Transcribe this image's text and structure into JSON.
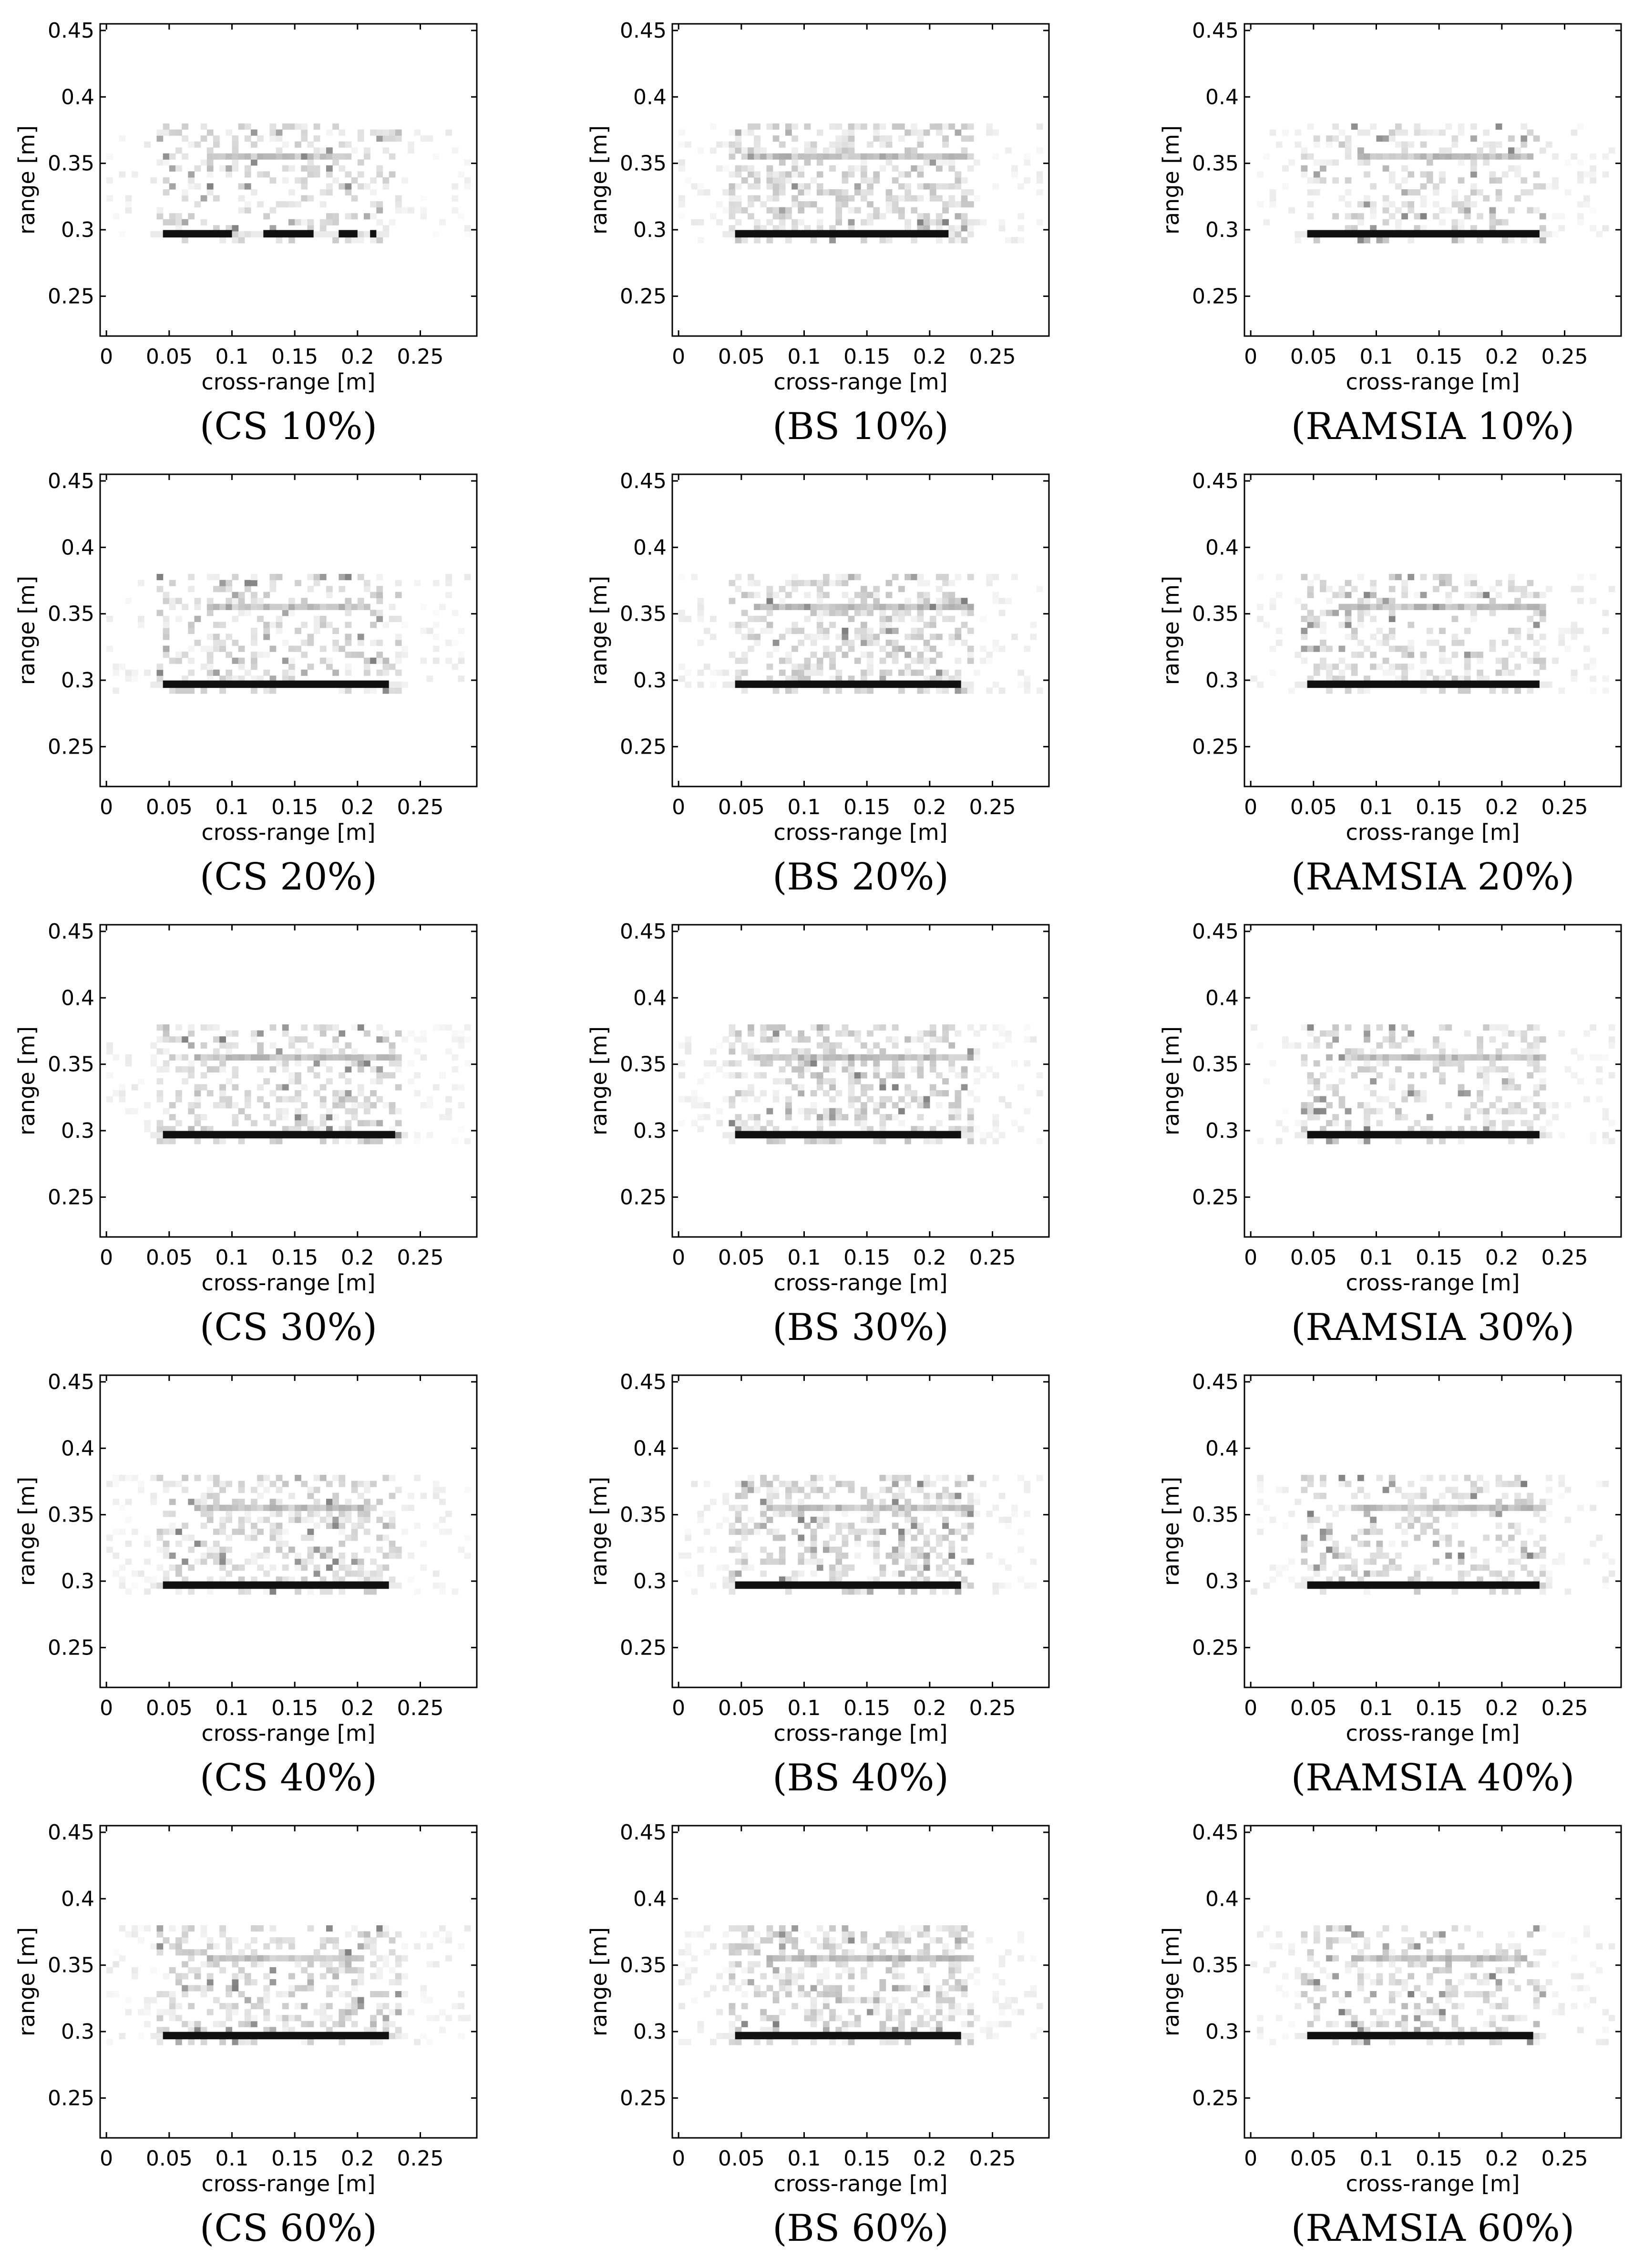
{
  "figure": {
    "xlabel": "cross-range [m]",
    "ylabel": "range [m]",
    "xticks": [
      "0",
      "0.05",
      "0.1",
      "0.15",
      "0.2",
      "0.25"
    ],
    "yticks": [
      "0.25",
      "0.3",
      "0.35",
      "0.4",
      "0.45"
    ],
    "xlim": [
      -0.005,
      0.295
    ],
    "ylim": [
      0.22,
      0.455
    ],
    "colormap": "grayscale (white = low, black = high)"
  },
  "chart_data": [
    {
      "type": "heatmap",
      "method": "CS",
      "percent": "10%",
      "caption": "(CS 10%)",
      "xlabel": "cross-range [m]",
      "ylabel": "range [m]",
      "xlim": [
        -0.005,
        0.295
      ],
      "ylim": [
        0.22,
        0.455
      ],
      "x_extent": [
        0.0,
        0.29
      ],
      "y_extent": [
        0.29,
        0.38
      ],
      "bright_lines_range_m": [
        0.297,
        0.355
      ],
      "strong_line": {
        "range_m": 0.297,
        "cross_range_m": [
          0.045,
          0.215
        ],
        "segments": [
          [
            0.045,
            0.1
          ],
          [
            0.125,
            0.165
          ],
          [
            0.185,
            0.2
          ],
          [
            0.21,
            0.215
          ]
        ]
      },
      "secondary_line": {
        "range_m": 0.355,
        "cross_range_m": [
          0.085,
          0.185
        ]
      },
      "speckle_level": 0.25,
      "band_intensity": 0.45
    },
    {
      "type": "heatmap",
      "method": "BS",
      "percent": "10%",
      "caption": "(BS 10%)",
      "xlabel": "cross-range [m]",
      "ylabel": "range [m]",
      "xlim": [
        -0.005,
        0.295
      ],
      "ylim": [
        0.22,
        0.455
      ],
      "x_extent": [
        0.0,
        0.29
      ],
      "y_extent": [
        0.29,
        0.38
      ],
      "bright_lines_range_m": [
        0.297,
        0.355
      ],
      "strong_line": {
        "range_m": 0.297,
        "cross_range_m": [
          0.045,
          0.215
        ],
        "segments": [
          [
            0.045,
            0.215
          ]
        ]
      },
      "secondary_line": {
        "range_m": 0.355,
        "cross_range_m": [
          0.065,
          0.225
        ]
      },
      "speckle_level": 0.4,
      "band_intensity": 0.55
    },
    {
      "type": "heatmap",
      "method": "RAMSIA",
      "percent": "10%",
      "caption": "(RAMSIA 10%)",
      "xlabel": "cross-range [m]",
      "ylabel": "range [m]",
      "xlim": [
        -0.005,
        0.295
      ],
      "ylim": [
        0.22,
        0.455
      ],
      "x_extent": [
        0.0,
        0.29
      ],
      "y_extent": [
        0.29,
        0.38
      ],
      "bright_lines_range_m": [
        0.297,
        0.355
      ],
      "strong_line": {
        "range_m": 0.297,
        "cross_range_m": [
          0.045,
          0.23
        ],
        "segments": [
          [
            0.045,
            0.23
          ]
        ]
      },
      "secondary_line": {
        "range_m": 0.355,
        "cross_range_m": [
          0.095,
          0.215
        ]
      },
      "speckle_level": 0.3,
      "band_intensity": 0.5
    },
    {
      "type": "heatmap",
      "method": "CS",
      "percent": "20%",
      "caption": "(CS 20%)",
      "xlabel": "cross-range [m]",
      "ylabel": "range [m]",
      "xlim": [
        -0.005,
        0.295
      ],
      "ylim": [
        0.22,
        0.455
      ],
      "x_extent": [
        0.0,
        0.29
      ],
      "y_extent": [
        0.29,
        0.38
      ],
      "bright_lines_range_m": [
        0.297,
        0.355
      ],
      "strong_line": {
        "range_m": 0.297,
        "cross_range_m": [
          0.045,
          0.225
        ],
        "segments": [
          [
            0.045,
            0.225
          ]
        ]
      },
      "secondary_line": {
        "range_m": 0.355,
        "cross_range_m": [
          0.085,
          0.2
        ]
      },
      "speckle_level": 0.3,
      "band_intensity": 0.5
    },
    {
      "type": "heatmap",
      "method": "BS",
      "percent": "20%",
      "caption": "(BS 20%)",
      "xlabel": "cross-range [m]",
      "ylabel": "range [m]",
      "xlim": [
        -0.005,
        0.295
      ],
      "ylim": [
        0.22,
        0.455
      ],
      "x_extent": [
        0.0,
        0.29
      ],
      "y_extent": [
        0.29,
        0.38
      ],
      "bright_lines_range_m": [
        0.297,
        0.355
      ],
      "strong_line": {
        "range_m": 0.297,
        "cross_range_m": [
          0.045,
          0.225
        ],
        "segments": [
          [
            0.045,
            0.225
          ]
        ]
      },
      "secondary_line": {
        "range_m": 0.355,
        "cross_range_m": [
          0.065,
          0.225
        ]
      },
      "speckle_level": 0.4,
      "band_intensity": 0.55
    },
    {
      "type": "heatmap",
      "method": "RAMSIA",
      "percent": "20%",
      "caption": "(RAMSIA 20%)",
      "xlabel": "cross-range [m]",
      "ylabel": "range [m]",
      "xlim": [
        -0.005,
        0.295
      ],
      "ylim": [
        0.22,
        0.455
      ],
      "x_extent": [
        0.0,
        0.29
      ],
      "y_extent": [
        0.29,
        0.38
      ],
      "bright_lines_range_m": [
        0.297,
        0.355
      ],
      "strong_line": {
        "range_m": 0.297,
        "cross_range_m": [
          0.045,
          0.23
        ],
        "segments": [
          [
            0.045,
            0.23
          ]
        ]
      },
      "secondary_line": {
        "range_m": 0.355,
        "cross_range_m": [
          0.075,
          0.225
        ]
      },
      "speckle_level": 0.3,
      "band_intensity": 0.5
    },
    {
      "type": "heatmap",
      "method": "CS",
      "percent": "30%",
      "caption": "(CS 30%)",
      "xlabel": "cross-range [m]",
      "ylabel": "range [m]",
      "xlim": [
        -0.005,
        0.295
      ],
      "ylim": [
        0.22,
        0.455
      ],
      "x_extent": [
        0.0,
        0.29
      ],
      "y_extent": [
        0.29,
        0.38
      ],
      "bright_lines_range_m": [
        0.297,
        0.355
      ],
      "strong_line": {
        "range_m": 0.297,
        "cross_range_m": [
          0.045,
          0.23
        ],
        "segments": [
          [
            0.045,
            0.23
          ]
        ]
      },
      "secondary_line": {
        "range_m": 0.355,
        "cross_range_m": [
          0.075,
          0.225
        ]
      },
      "speckle_level": 0.35,
      "band_intensity": 0.5
    },
    {
      "type": "heatmap",
      "method": "BS",
      "percent": "30%",
      "caption": "(BS 30%)",
      "xlabel": "cross-range [m]",
      "ylabel": "range [m]",
      "xlim": [
        -0.005,
        0.295
      ],
      "ylim": [
        0.22,
        0.455
      ],
      "x_extent": [
        0.0,
        0.29
      ],
      "y_extent": [
        0.29,
        0.38
      ],
      "bright_lines_range_m": [
        0.297,
        0.355
      ],
      "strong_line": {
        "range_m": 0.297,
        "cross_range_m": [
          0.045,
          0.225
        ],
        "segments": [
          [
            0.045,
            0.225
          ]
        ]
      },
      "secondary_line": {
        "range_m": 0.355,
        "cross_range_m": [
          0.065,
          0.225
        ]
      },
      "speckle_level": 0.4,
      "band_intensity": 0.55
    },
    {
      "type": "heatmap",
      "method": "RAMSIA",
      "percent": "30%",
      "caption": "(RAMSIA 30%)",
      "xlabel": "cross-range [m]",
      "ylabel": "range [m]",
      "xlim": [
        -0.005,
        0.295
      ],
      "ylim": [
        0.22,
        0.455
      ],
      "x_extent": [
        0.0,
        0.29
      ],
      "y_extent": [
        0.29,
        0.38
      ],
      "bright_lines_range_m": [
        0.297,
        0.355
      ],
      "strong_line": {
        "range_m": 0.297,
        "cross_range_m": [
          0.045,
          0.23
        ],
        "segments": [
          [
            0.045,
            0.23
          ]
        ]
      },
      "secondary_line": {
        "range_m": 0.355,
        "cross_range_m": [
          0.085,
          0.225
        ]
      },
      "speckle_level": 0.3,
      "band_intensity": 0.5
    },
    {
      "type": "heatmap",
      "method": "CS",
      "percent": "40%",
      "caption": "(CS 40%)",
      "xlabel": "cross-range [m]",
      "ylabel": "range [m]",
      "xlim": [
        -0.005,
        0.295
      ],
      "ylim": [
        0.22,
        0.455
      ],
      "x_extent": [
        0.0,
        0.29
      ],
      "y_extent": [
        0.29,
        0.38
      ],
      "bright_lines_range_m": [
        0.297,
        0.355
      ],
      "strong_line": {
        "range_m": 0.297,
        "cross_range_m": [
          0.045,
          0.225
        ],
        "segments": [
          [
            0.045,
            0.225
          ]
        ]
      },
      "secondary_line": {
        "range_m": 0.355,
        "cross_range_m": [
          0.075,
          0.195
        ]
      },
      "speckle_level": 0.35,
      "band_intensity": 0.5
    },
    {
      "type": "heatmap",
      "method": "BS",
      "percent": "40%",
      "caption": "(BS 40%)",
      "xlabel": "cross-range [m]",
      "ylabel": "range [m]",
      "xlim": [
        -0.005,
        0.295
      ],
      "ylim": [
        0.22,
        0.455
      ],
      "x_extent": [
        0.0,
        0.29
      ],
      "y_extent": [
        0.29,
        0.38
      ],
      "bright_lines_range_m": [
        0.297,
        0.355
      ],
      "strong_line": {
        "range_m": 0.297,
        "cross_range_m": [
          0.045,
          0.225
        ],
        "segments": [
          [
            0.045,
            0.225
          ]
        ]
      },
      "secondary_line": {
        "range_m": 0.355,
        "cross_range_m": [
          0.075,
          0.225
        ]
      },
      "speckle_level": 0.4,
      "band_intensity": 0.55
    },
    {
      "type": "heatmap",
      "method": "RAMSIA",
      "percent": "40%",
      "caption": "(RAMSIA 40%)",
      "xlabel": "cross-range [m]",
      "ylabel": "range [m]",
      "xlim": [
        -0.005,
        0.295
      ],
      "ylim": [
        0.22,
        0.455
      ],
      "x_extent": [
        0.0,
        0.29
      ],
      "y_extent": [
        0.29,
        0.38
      ],
      "bright_lines_range_m": [
        0.297,
        0.355
      ],
      "strong_line": {
        "range_m": 0.297,
        "cross_range_m": [
          0.045,
          0.23
        ],
        "segments": [
          [
            0.045,
            0.23
          ]
        ]
      },
      "secondary_line": {
        "range_m": 0.355,
        "cross_range_m": [
          0.085,
          0.225
        ]
      },
      "speckle_level": 0.3,
      "band_intensity": 0.5
    },
    {
      "type": "heatmap",
      "method": "CS",
      "percent": "60%",
      "caption": "(CS 60%)",
      "xlabel": "cross-range [m]",
      "ylabel": "range [m]",
      "xlim": [
        -0.005,
        0.295
      ],
      "ylim": [
        0.22,
        0.455
      ],
      "x_extent": [
        0.0,
        0.29
      ],
      "y_extent": [
        0.29,
        0.38
      ],
      "bright_lines_range_m": [
        0.297,
        0.355
      ],
      "strong_line": {
        "range_m": 0.297,
        "cross_range_m": [
          0.045,
          0.225
        ],
        "segments": [
          [
            0.045,
            0.225
          ]
        ]
      },
      "secondary_line": {
        "range_m": 0.355,
        "cross_range_m": [
          0.085,
          0.195
        ]
      },
      "speckle_level": 0.35,
      "band_intensity": 0.5
    },
    {
      "type": "heatmap",
      "method": "BS",
      "percent": "60%",
      "caption": "(BS 60%)",
      "xlabel": "cross-range [m]",
      "ylabel": "range [m]",
      "xlim": [
        -0.005,
        0.295
      ],
      "ylim": [
        0.22,
        0.455
      ],
      "x_extent": [
        0.0,
        0.29
      ],
      "y_extent": [
        0.29,
        0.38
      ],
      "bright_lines_range_m": [
        0.297,
        0.355
      ],
      "strong_line": {
        "range_m": 0.297,
        "cross_range_m": [
          0.045,
          0.225
        ],
        "segments": [
          [
            0.045,
            0.225
          ]
        ]
      },
      "secondary_line": {
        "range_m": 0.355,
        "cross_range_m": [
          0.075,
          0.225
        ]
      },
      "speckle_level": 0.4,
      "band_intensity": 0.55
    },
    {
      "type": "heatmap",
      "method": "RAMSIA",
      "percent": "60%",
      "caption": "(RAMSIA 60%)",
      "xlabel": "cross-range [m]",
      "ylabel": "range [m]",
      "xlim": [
        -0.005,
        0.295
      ],
      "ylim": [
        0.22,
        0.455
      ],
      "x_extent": [
        0.0,
        0.29
      ],
      "y_extent": [
        0.29,
        0.38
      ],
      "bright_lines_range_m": [
        0.297,
        0.355
      ],
      "strong_line": {
        "range_m": 0.297,
        "cross_range_m": [
          0.045,
          0.225
        ],
        "segments": [
          [
            0.045,
            0.225
          ]
        ]
      },
      "secondary_line": {
        "range_m": 0.355,
        "cross_range_m": [
          0.085,
          0.21
        ]
      },
      "speckle_level": 0.3,
      "band_intensity": 0.5
    }
  ]
}
